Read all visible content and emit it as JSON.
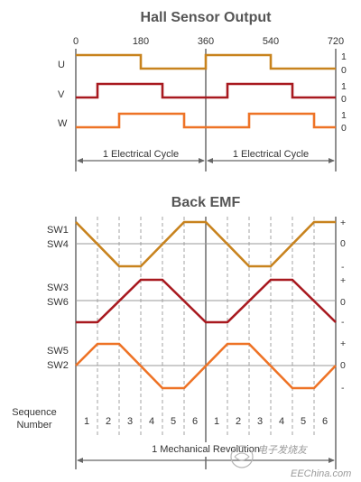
{
  "hall": {
    "title": "Hall Sensor Output",
    "angle_ticks": [
      "0",
      "180",
      "360",
      "540",
      "720"
    ],
    "signals": [
      {
        "name": "U",
        "high": "1",
        "low": "0",
        "color": "#c8831e",
        "levels": [
          1,
          1,
          1,
          1,
          1,
          1,
          0,
          0,
          0,
          0,
          0,
          0,
          1,
          1,
          1,
          1,
          1,
          1,
          0,
          0,
          0,
          0,
          0,
          0
        ]
      },
      {
        "name": "V",
        "high": "1",
        "low": "0",
        "color": "#a8191f",
        "levels": [
          0,
          0,
          1,
          1,
          1,
          1,
          1,
          1,
          0,
          0,
          0,
          0,
          0,
          0,
          1,
          1,
          1,
          1,
          1,
          1,
          0,
          0,
          0,
          0
        ]
      },
      {
        "name": "W",
        "high": "1",
        "low": "0",
        "color": "#ee7326",
        "levels": [
          0,
          0,
          0,
          0,
          1,
          1,
          1,
          1,
          1,
          1,
          0,
          0,
          0,
          0,
          0,
          0,
          1,
          1,
          1,
          1,
          1,
          1,
          0,
          0
        ]
      }
    ],
    "cycle_labels": [
      "1 Electrical Cycle",
      "1 Electrical Cycle"
    ]
  },
  "emf": {
    "title": "Back EMF",
    "pairs": [
      {
        "top": "SW1",
        "bottom": "SW4",
        "color": "#c8831e",
        "plus": "+",
        "zero": "0",
        "minus": "-",
        "points": [
          [
            0,
            1
          ],
          [
            2,
            -1
          ],
          [
            3,
            -1
          ],
          [
            5,
            1
          ],
          [
            6,
            1
          ],
          [
            8,
            -1
          ],
          [
            9,
            -1
          ],
          [
            11,
            1
          ],
          [
            12,
            1
          ]
        ]
      },
      {
        "top": "SW3",
        "bottom": "SW6",
        "color": "#a8191f",
        "plus": "+",
        "zero": "0",
        "minus": "-",
        "points": [
          [
            0,
            -1
          ],
          [
            1,
            -1
          ],
          [
            3,
            1
          ],
          [
            4,
            1
          ],
          [
            6,
            -1
          ],
          [
            7,
            -1
          ],
          [
            9,
            1
          ],
          [
            10,
            1
          ],
          [
            12,
            -1
          ]
        ]
      },
      {
        "top": "SW5",
        "bottom": "SW2",
        "color": "#ee7326",
        "plus": "+",
        "zero": "0",
        "minus": "-",
        "points": [
          [
            0,
            0
          ],
          [
            1,
            1
          ],
          [
            2,
            1
          ],
          [
            4,
            -1
          ],
          [
            5,
            -1
          ],
          [
            7,
            1
          ],
          [
            8,
            1
          ],
          [
            10,
            -1
          ],
          [
            11,
            -1
          ],
          [
            12,
            0
          ]
        ]
      }
    ],
    "sequence_label_1": "Sequence",
    "sequence_label_2": "Number",
    "sequence_numbers": [
      "1",
      "2",
      "3",
      "4",
      "5",
      "6",
      "1",
      "2",
      "3",
      "4",
      "5",
      "6"
    ],
    "revolution_label": "1 Mechanical Revolution"
  },
  "watermark": {
    "text": "电子发烧友",
    "site": "EEChina.com"
  },
  "colors": {
    "axis": "#555555",
    "grid": "#9a9a9a",
    "arrow": "#666666"
  }
}
